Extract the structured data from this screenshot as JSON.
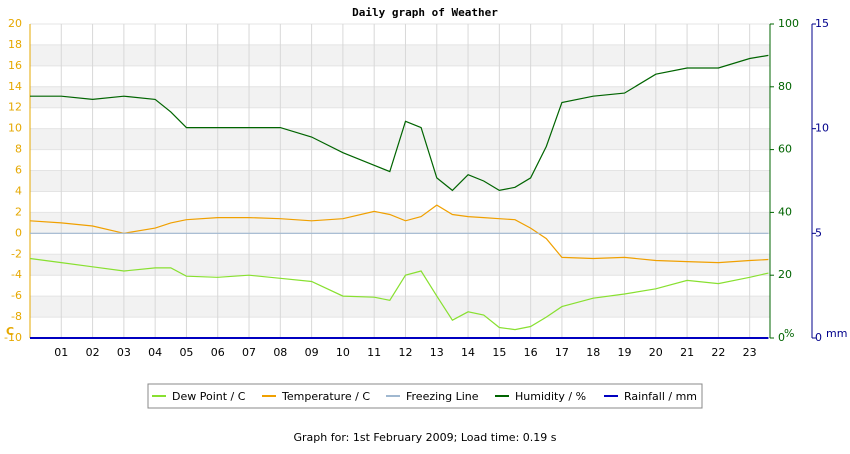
{
  "chart_data": {
    "type": "line",
    "title": "Daily graph of Weather",
    "footer": "Graph for: 1st February 2009; Load time: 0.19 s",
    "y_unit": "C",
    "y2_unit": "%",
    "y3_unit": "mm",
    "x": [
      0,
      1,
      2,
      3,
      4,
      4.5,
      5,
      6,
      7,
      8,
      9,
      10,
      11,
      11.5,
      12,
      12.5,
      13,
      13.5,
      14,
      14.5,
      15,
      15.5,
      16,
      16.5,
      17,
      18,
      19,
      20,
      21,
      22,
      23,
      23.6
    ],
    "xlim": [
      0,
      23.65
    ],
    "xticks": [
      {
        "value": 1,
        "label": "01"
      },
      {
        "value": 2,
        "label": "02"
      },
      {
        "value": 3,
        "label": "03"
      },
      {
        "value": 4,
        "label": "04"
      },
      {
        "value": 5,
        "label": "05"
      },
      {
        "value": 6,
        "label": "06"
      },
      {
        "value": 7,
        "label": "07"
      },
      {
        "value": 8,
        "label": "08"
      },
      {
        "value": 9,
        "label": "09"
      },
      10,
      11,
      12,
      13,
      14,
      15,
      16,
      17,
      18,
      19,
      20,
      21,
      22,
      23
    ],
    "ylim": [
      -10,
      20
    ],
    "yticks": [
      -10,
      -8,
      -6,
      -4,
      -2,
      0,
      2,
      4,
      6,
      8,
      10,
      12,
      14,
      16,
      18,
      20
    ],
    "y2lim": [
      0,
      100
    ],
    "y2ticks": [
      0,
      20,
      40,
      60,
      80,
      100
    ],
    "y3lim": [
      0,
      15
    ],
    "y3ticks": [
      0,
      5,
      10,
      15
    ],
    "grid": true,
    "legend": "bottom",
    "series": [
      {
        "name": "Dew Point / C",
        "color": "#88e030",
        "axis": "y",
        "values": [
          -2.4,
          -2.8,
          -3.2,
          -3.6,
          -3.3,
          -3.3,
          -4.1,
          -4.2,
          -4.0,
          -4.3,
          -4.6,
          -6.0,
          -6.1,
          -6.4,
          -4.0,
          -3.6,
          -6.0,
          -8.3,
          -7.5,
          -7.8,
          -9.0,
          -9.2,
          -8.9,
          -8.0,
          -7.0,
          -6.2,
          -5.8,
          -5.3,
          -4.5,
          -4.8,
          -4.2,
          -3.8
        ]
      },
      {
        "name": "Temperature / C",
        "color": "#f0a000",
        "axis": "y",
        "values": [
          1.2,
          1.0,
          0.7,
          0,
          0.5,
          1.0,
          1.3,
          1.5,
          1.5,
          1.4,
          1.2,
          1.4,
          2.1,
          1.8,
          1.2,
          1.6,
          2.7,
          1.8,
          1.6,
          1.5,
          1.4,
          1.3,
          0.5,
          -0.5,
          -2.3,
          -2.4,
          -2.3,
          -2.6,
          -2.7,
          -2.8,
          -2.6,
          -2.5
        ]
      },
      {
        "name": "Freezing Line",
        "color": "#a0b8d0",
        "axis": "y",
        "values": [
          0,
          0,
          0,
          0,
          0,
          0,
          0,
          0,
          0,
          0,
          0,
          0,
          0,
          0,
          0,
          0,
          0,
          0,
          0,
          0,
          0,
          0,
          0,
          0,
          0,
          0,
          0,
          0,
          0,
          0,
          0,
          0
        ]
      },
      {
        "name": "Humidity / %",
        "color": "#006400",
        "axis": "y2",
        "values": [
          77,
          77,
          76,
          77,
          76,
          72,
          67,
          67,
          67,
          67,
          64,
          59,
          55,
          53,
          69,
          67,
          51,
          47,
          52,
          50,
          47,
          48,
          51,
          61,
          75,
          77,
          78,
          84,
          86,
          86,
          89,
          90
        ]
      },
      {
        "name": "Rainfall / mm",
        "color": "#0000c0",
        "axis": "y3",
        "values": [
          0,
          0,
          0,
          0,
          0,
          0,
          0,
          0,
          0,
          0,
          0,
          0,
          0,
          0,
          0,
          0,
          0,
          0,
          0,
          0,
          0,
          0,
          0,
          0,
          0,
          0,
          0,
          0,
          0,
          0,
          0,
          0
        ]
      }
    ]
  }
}
